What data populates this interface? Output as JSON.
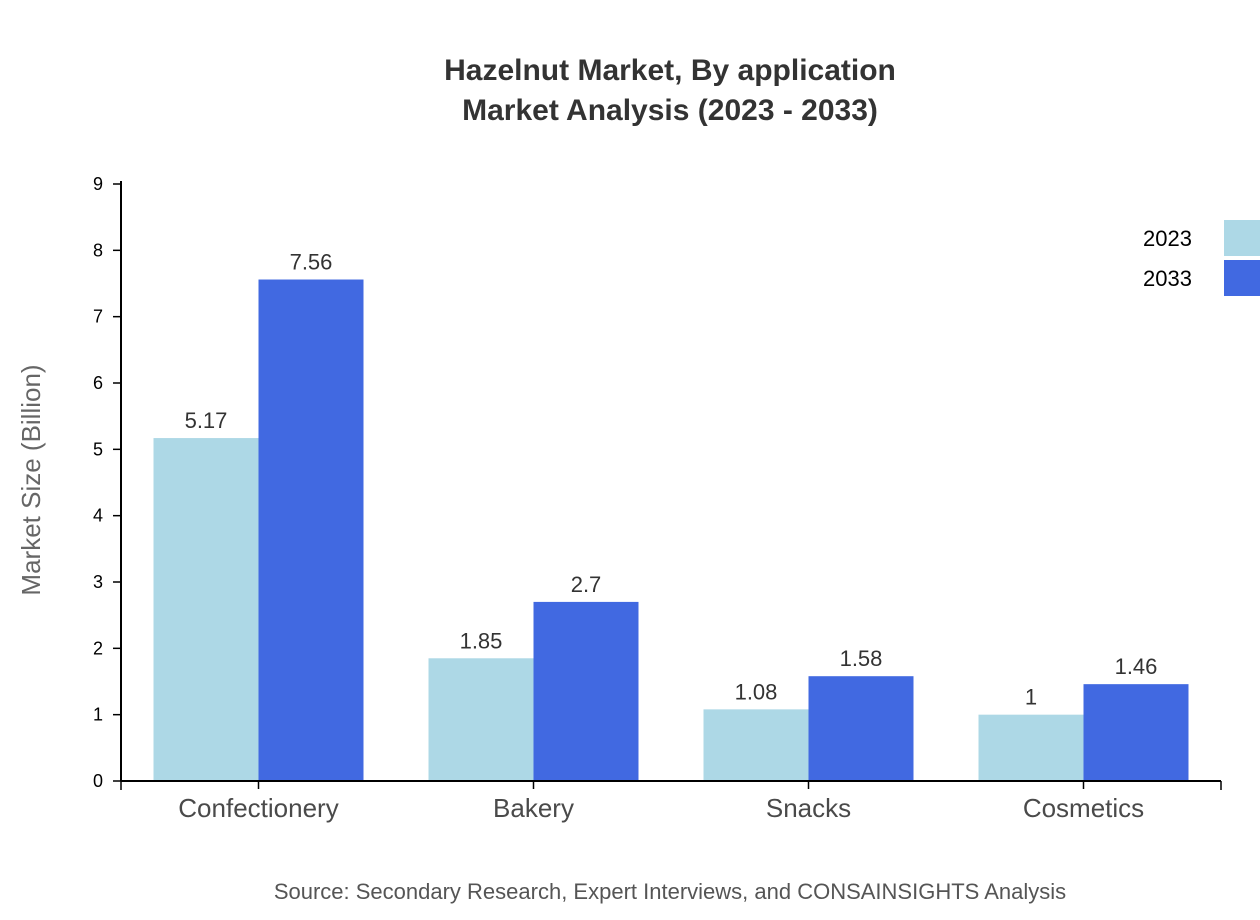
{
  "chart_data": {
    "type": "bar",
    "title": "Hazelnut Market, By application",
    "subtitle": "Market Analysis (2023 - 2033)",
    "xlabel": "",
    "ylabel": "Market Size (Billion)",
    "categories": [
      "Confectionery",
      "Bakery",
      "Snacks",
      "Cosmetics"
    ],
    "series": [
      {
        "name": "2023",
        "values": [
          5.17,
          1.85,
          1.08,
          1
        ],
        "labels": [
          "5.17",
          "1.85",
          "1.08",
          "1"
        ],
        "color": "#add8e6"
      },
      {
        "name": "2033",
        "values": [
          7.56,
          2.7,
          1.58,
          1.46
        ],
        "labels": [
          "7.56",
          "2.7",
          "1.58",
          "1.46"
        ],
        "color": "#4169e1"
      }
    ],
    "ylim": [
      0,
      9
    ],
    "yticks": [
      "0",
      "1",
      "2",
      "3",
      "4",
      "5",
      "6",
      "7",
      "8",
      "9"
    ],
    "grid": false,
    "legend_position": "top-right",
    "source": "Source: Secondary Research, Expert Interviews, and CONSAINSIGHTS Analysis"
  }
}
